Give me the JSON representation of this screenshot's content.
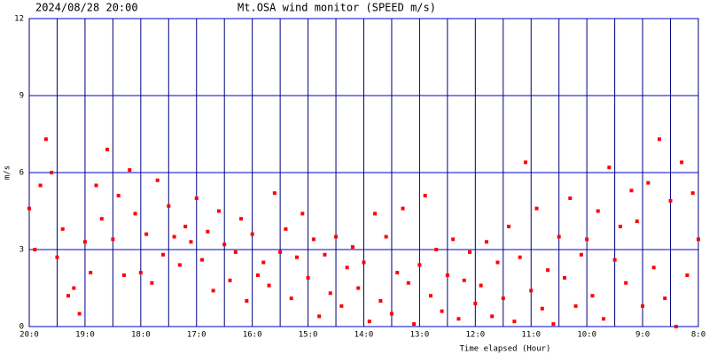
{
  "chart_data": {
    "type": "scatter",
    "title": "Mt.OSA wind monitor (SPEED m/s)",
    "subtitle": "2024/08/28 20:00",
    "y_label": "m/s",
    "x_label": "Time elapsed (Hour)",
    "color": "#ff0000",
    "grid": true,
    "xlim": [
      0,
      12
    ],
    "ylim": [
      0,
      12
    ],
    "yticks": [
      0,
      3,
      6,
      9,
      12
    ],
    "xticks": [
      {
        "value": 0,
        "label": "20:0"
      },
      {
        "value": 1,
        "label": "19:0"
      },
      {
        "value": 2,
        "label": "18:0"
      },
      {
        "value": 3,
        "label": "17:0"
      },
      {
        "value": 4,
        "label": "16:0"
      },
      {
        "value": 5,
        "label": "15:0"
      },
      {
        "value": 6,
        "label": "14:0"
      },
      {
        "value": 7,
        "label": "13:0"
      },
      {
        "value": 8,
        "label": "12:0"
      },
      {
        "value": 9,
        "label": "11:0"
      },
      {
        "value": 10,
        "label": "10:0"
      },
      {
        "value": 11,
        "label": "9:0"
      },
      {
        "value": 12,
        "label": "8:0"
      }
    ],
    "minor_xticks": [
      0.5,
      1.5,
      2.5,
      3.5,
      4.5,
      5.5,
      6.5,
      7.5,
      8.5,
      9.5,
      10.5,
      11.5
    ],
    "x": [
      0.0,
      0.1,
      0.2,
      0.3,
      0.4,
      0.5,
      0.6,
      0.7,
      0.8,
      0.9,
      1.0,
      1.1,
      1.2,
      1.3,
      1.4,
      1.5,
      1.6,
      1.7,
      1.8,
      1.9,
      2.0,
      2.1,
      2.2,
      2.3,
      2.4,
      2.5,
      2.6,
      2.7,
      2.8,
      2.9,
      3.0,
      3.1,
      3.2,
      3.3,
      3.4,
      3.5,
      3.6,
      3.7,
      3.8,
      3.9,
      4.0,
      4.1,
      4.2,
      4.3,
      4.4,
      4.5,
      4.6,
      4.7,
      4.8,
      4.9,
      5.0,
      5.1,
      5.2,
      5.3,
      5.4,
      5.5,
      5.6,
      5.7,
      5.8,
      5.9,
      6.0,
      6.1,
      6.2,
      6.3,
      6.4,
      6.5,
      6.6,
      6.7,
      6.8,
      6.9,
      7.0,
      7.1,
      7.2,
      7.3,
      7.4,
      7.5,
      7.6,
      7.7,
      7.8,
      7.9,
      8.0,
      8.1,
      8.2,
      8.3,
      8.4,
      8.5,
      8.6,
      8.7,
      8.8,
      8.9,
      9.0,
      9.1,
      9.2,
      9.3,
      9.4,
      9.5,
      9.6,
      9.7,
      9.8,
      9.9,
      10.0,
      10.1,
      10.2,
      10.3,
      10.4,
      10.5,
      10.6,
      10.7,
      10.8,
      10.9,
      11.0,
      11.1,
      11.2,
      11.3,
      11.4,
      11.5,
      11.6,
      11.7,
      11.8,
      11.9,
      12.0
    ],
    "values": [
      4.6,
      3.0,
      5.5,
      7.3,
      6.0,
      2.7,
      3.8,
      1.2,
      1.5,
      0.5,
      3.3,
      2.1,
      5.5,
      4.2,
      6.9,
      3.4,
      5.1,
      2.0,
      6.1,
      4.4,
      2.1,
      3.6,
      1.7,
      5.7,
      2.8,
      4.7,
      3.5,
      2.4,
      3.9,
      3.3,
      5.0,
      2.6,
      3.7,
      1.4,
      4.5,
      3.2,
      1.8,
      2.9,
      4.2,
      1.0,
      3.6,
      2.0,
      2.5,
      1.6,
      5.2,
      2.9,
      3.8,
      1.1,
      2.7,
      4.4,
      1.9,
      3.4,
      0.4,
      2.8,
      1.3,
      3.5,
      0.8,
      2.3,
      3.1,
      1.5,
      2.5,
      0.2,
      4.4,
      1.0,
      3.5,
      0.5,
      2.1,
      4.6,
      1.7,
      0.1,
      2.4,
      5.1,
      1.2,
      3.0,
      0.6,
      2.0,
      3.4,
      0.3,
      1.8,
      2.9,
      0.9,
      1.6,
      3.3,
      0.4,
      2.5,
      1.1,
      3.9,
      0.2,
      2.7,
      6.4,
      1.4,
      4.6,
      0.7,
      2.2,
      0.1,
      3.5,
      1.9,
      5.0,
      0.8,
      2.8,
      3.4,
      1.2,
      4.5,
      0.3,
      6.2,
      2.6,
      3.9,
      1.7,
      5.3,
      4.1,
      0.8,
      5.6,
      2.3,
      7.3,
      1.1,
      4.9,
      0.0,
      6.4,
      2.0,
      5.2,
      3.4
    ]
  }
}
